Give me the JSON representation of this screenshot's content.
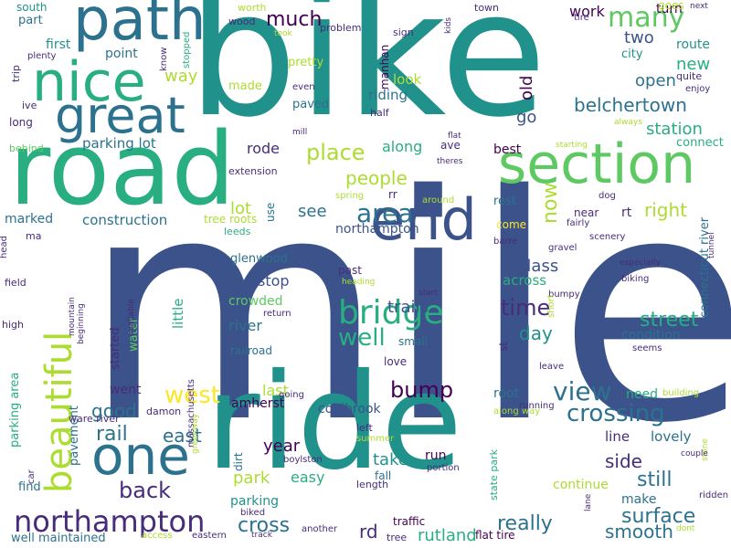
{
  "palette": {
    "dark_purple": "#440154",
    "indigo": "#472c7a",
    "blue": "#3b528b",
    "steel": "#2c728e",
    "teal": "#21918c",
    "sea": "#28ae80",
    "green": "#5ec962",
    "lime": "#addc30",
    "yellow": "#fde725"
  },
  "words": [
    {
      "text": "mile",
      "size": 340,
      "color": "blue"
    },
    {
      "text": "bike",
      "size": 190,
      "color": "teal"
    },
    {
      "text": "ride",
      "size": 145,
      "color": "teal"
    },
    {
      "text": "road",
      "size": 110,
      "color": "sea"
    },
    {
      "text": "path",
      "size": 64,
      "color": "steel"
    },
    {
      "text": "section",
      "size": 60,
      "color": "green"
    },
    {
      "text": "nice",
      "size": 60,
      "color": "sea"
    },
    {
      "text": "great",
      "size": 54,
      "color": "steel"
    },
    {
      "text": "end",
      "size": 62,
      "color": "blue"
    },
    {
      "text": "one",
      "size": 58,
      "color": "steel"
    },
    {
      "text": "beautiful",
      "size": 40,
      "color": "lime"
    },
    {
      "text": "northampton",
      "size": 32,
      "color": "indigo"
    },
    {
      "text": "bridge",
      "size": 36,
      "color": "sea"
    },
    {
      "text": "many",
      "size": 30,
      "color": "green"
    },
    {
      "text": "area",
      "size": 28,
      "color": "steel"
    },
    {
      "text": "view",
      "size": 28,
      "color": "steel"
    },
    {
      "text": "west",
      "size": 26,
      "color": "yellow"
    },
    {
      "text": "crossing",
      "size": 26,
      "color": "steel"
    },
    {
      "text": "well",
      "size": 26,
      "color": "sea"
    },
    {
      "text": "time",
      "size": 24,
      "color": "indigo"
    },
    {
      "text": "street",
      "size": 22,
      "color": "sea"
    },
    {
      "text": "back",
      "size": 24,
      "color": "indigo"
    },
    {
      "text": "surface",
      "size": 22,
      "color": "steel"
    },
    {
      "text": "place",
      "size": 24,
      "color": "lime"
    },
    {
      "text": "bump",
      "size": 24,
      "color": "dark_purple"
    },
    {
      "text": "much",
      "size": 22,
      "color": "dark_purple"
    },
    {
      "text": "now",
      "size": 22,
      "color": "lime"
    },
    {
      "text": "really",
      "size": 22,
      "color": "steel"
    },
    {
      "text": "cross",
      "size": 22,
      "color": "steel"
    },
    {
      "text": "smooth",
      "size": 20,
      "color": "steel"
    },
    {
      "text": "rail",
      "size": 22,
      "color": "steel"
    },
    {
      "text": "east",
      "size": 20,
      "color": "steel"
    },
    {
      "text": "still",
      "size": 22,
      "color": "steel"
    },
    {
      "text": "good",
      "size": 20,
      "color": "steel"
    },
    {
      "text": "people",
      "size": 20,
      "color": "lime"
    },
    {
      "text": "belchertown",
      "size": 20,
      "color": "steel"
    },
    {
      "text": "day",
      "size": 20,
      "color": "teal"
    },
    {
      "text": "side",
      "size": 20,
      "color": "indigo"
    },
    {
      "text": "right",
      "size": 20,
      "color": "lime"
    },
    {
      "text": "rd",
      "size": 20,
      "color": "indigo"
    },
    {
      "text": "park",
      "size": 18,
      "color": "lime"
    },
    {
      "text": "year",
      "size": 18,
      "color": "dark_purple"
    },
    {
      "text": "rutland",
      "size": 18,
      "color": "sea"
    },
    {
      "text": "station",
      "size": 18,
      "color": "sea"
    },
    {
      "text": "open",
      "size": 18,
      "color": "steel"
    },
    {
      "text": "glass",
      "size": 18,
      "color": "blue"
    },
    {
      "text": "see",
      "size": 18,
      "color": "steel"
    },
    {
      "text": "go",
      "size": 18,
      "color": "blue"
    },
    {
      "text": "new",
      "size": 18,
      "color": "sea"
    },
    {
      "text": "trails",
      "size": 18,
      "color": "blue"
    },
    {
      "text": "along",
      "size": 16,
      "color": "sea"
    },
    {
      "text": "two",
      "size": 18,
      "color": "blue"
    },
    {
      "text": "old",
      "size": 18,
      "color": "dark_purple"
    },
    {
      "text": "take",
      "size": 18,
      "color": "teal"
    },
    {
      "text": "work",
      "size": 16,
      "color": "dark_purple"
    },
    {
      "text": "way",
      "size": 18,
      "color": "lime"
    },
    {
      "text": "last",
      "size": 16,
      "color": "lime"
    },
    {
      "text": "lot",
      "size": 18,
      "color": "lime"
    },
    {
      "text": "stop",
      "size": 16,
      "color": "blue"
    },
    {
      "text": "parking lot",
      "size": 15,
      "color": "steel"
    },
    {
      "text": "rode",
      "size": 16,
      "color": "indigo"
    },
    {
      "text": "construction",
      "size": 15,
      "color": "steel"
    },
    {
      "text": "river",
      "size": 16,
      "color": "steel"
    },
    {
      "text": "easy",
      "size": 16,
      "color": "sea"
    },
    {
      "text": "riding",
      "size": 15,
      "color": "steel"
    },
    {
      "text": "look",
      "size": 15,
      "color": "lime"
    },
    {
      "text": "across",
      "size": 15,
      "color": "sea"
    },
    {
      "text": "amherst",
      "size": 14,
      "color": "dark_purple"
    },
    {
      "text": "coldbrook",
      "size": 14,
      "color": "blue"
    },
    {
      "text": "northampton",
      "size": 14,
      "color": "blue"
    },
    {
      "text": "condition",
      "size": 14,
      "color": "steel"
    },
    {
      "text": "line",
      "size": 15,
      "color": "indigo"
    },
    {
      "text": "lovely",
      "size": 15,
      "color": "steel"
    },
    {
      "text": "little",
      "size": 15,
      "color": "sea"
    },
    {
      "text": "crowded",
      "size": 14,
      "color": "green"
    },
    {
      "text": "route",
      "size": 14,
      "color": "teal"
    },
    {
      "text": "point",
      "size": 14,
      "color": "steel"
    },
    {
      "text": "parking",
      "size": 14,
      "color": "teal"
    },
    {
      "text": "first",
      "size": 14,
      "color": "teal"
    },
    {
      "text": "went",
      "size": 14,
      "color": "indigo"
    },
    {
      "text": "need",
      "size": 14,
      "color": "sea"
    },
    {
      "text": "best",
      "size": 14,
      "color": "dark_purple"
    },
    {
      "text": "root",
      "size": 14,
      "color": "steel"
    },
    {
      "text": "marked",
      "size": 14,
      "color": "steel"
    },
    {
      "text": "continue",
      "size": 14,
      "color": "lime"
    },
    {
      "text": "make",
      "size": 14,
      "color": "steel"
    },
    {
      "text": "run",
      "size": 14,
      "color": "dark_purple"
    },
    {
      "text": "glenwood",
      "size": 13,
      "color": "steel"
    },
    {
      "text": "connect",
      "size": 13,
      "color": "sea"
    },
    {
      "text": "rest",
      "size": 13,
      "color": "steel"
    },
    {
      "text": "pavement",
      "size": 13,
      "color": "steel"
    },
    {
      "text": "connecticut river",
      "size": 13,
      "color": "steel"
    },
    {
      "text": "turn",
      "size": 14,
      "color": "dark_purple"
    },
    {
      "text": "part",
      "size": 13,
      "color": "steel"
    },
    {
      "text": "well maintained",
      "size": 13,
      "color": "steel"
    },
    {
      "text": "find",
      "size": 13,
      "color": "steel"
    },
    {
      "text": "parking area",
      "size": 13,
      "color": "sea"
    },
    {
      "text": "state park",
      "size": 11,
      "color": "sea"
    },
    {
      "text": "started",
      "size": 13,
      "color": "indigo"
    },
    {
      "text": "water",
      "size": 13,
      "color": "green"
    },
    {
      "text": "city",
      "size": 13,
      "color": "teal"
    },
    {
      "text": "pretty",
      "size": 13,
      "color": "lime"
    },
    {
      "text": "made",
      "size": 13,
      "color": "lime"
    },
    {
      "text": "paved",
      "size": 13,
      "color": "steel"
    },
    {
      "text": "south",
      "size": 12,
      "color": "teal"
    },
    {
      "text": "long",
      "size": 12,
      "color": "indigo"
    },
    {
      "text": "use",
      "size": 12,
      "color": "steel"
    },
    {
      "text": "dirt",
      "size": 12,
      "color": "steel"
    },
    {
      "text": "fall",
      "size": 12,
      "color": "steel"
    },
    {
      "text": "past",
      "size": 12,
      "color": "indigo"
    },
    {
      "text": "love",
      "size": 12,
      "color": "indigo"
    },
    {
      "text": "small",
      "size": 12,
      "color": "steel"
    },
    {
      "text": "traffic",
      "size": 12,
      "color": "dark_purple"
    },
    {
      "text": "flat tire",
      "size": 12,
      "color": "dark_purple"
    },
    {
      "text": "rt",
      "size": 14,
      "color": "indigo"
    },
    {
      "text": "st",
      "size": 12,
      "color": "indigo"
    },
    {
      "text": "rr",
      "size": 12,
      "color": "indigo"
    },
    {
      "text": "ave",
      "size": 12,
      "color": "indigo"
    },
    {
      "text": "railroad",
      "size": 12,
      "color": "steel"
    },
    {
      "text": "tree roots",
      "size": 12,
      "color": "lime"
    },
    {
      "text": "ware river",
      "size": 11,
      "color": "indigo"
    },
    {
      "text": "damon",
      "size": 11,
      "color": "indigo"
    },
    {
      "text": "extension",
      "size": 11,
      "color": "indigo"
    },
    {
      "text": "manhan",
      "size": 12,
      "color": "dark_purple"
    },
    {
      "text": "leeds",
      "size": 11,
      "color": "sea"
    },
    {
      "text": "ma",
      "size": 11,
      "color": "indigo"
    },
    {
      "text": "high",
      "size": 11,
      "color": "indigo"
    },
    {
      "text": "field",
      "size": 11,
      "color": "indigo"
    },
    {
      "text": "ive",
      "size": 11,
      "color": "indigo"
    },
    {
      "text": "trip",
      "size": 11,
      "color": "indigo"
    },
    {
      "text": "plenty",
      "size": 10,
      "color": "indigo"
    },
    {
      "text": "behind",
      "size": 11,
      "color": "green"
    },
    {
      "text": "wood",
      "size": 11,
      "color": "indigo"
    },
    {
      "text": "worth",
      "size": 11,
      "color": "lime"
    },
    {
      "text": "know",
      "size": 10,
      "color": "indigo"
    },
    {
      "text": "stopped",
      "size": 10,
      "color": "sea"
    },
    {
      "text": "problem",
      "size": 11,
      "color": "indigo"
    },
    {
      "text": "sign",
      "size": 11,
      "color": "indigo"
    },
    {
      "text": "half",
      "size": 11,
      "color": "indigo"
    },
    {
      "text": "even",
      "size": 10,
      "color": "indigo"
    },
    {
      "text": "took",
      "size": 9,
      "color": "lime"
    },
    {
      "text": "mill",
      "size": 9,
      "color": "indigo"
    },
    {
      "text": "kids",
      "size": 9,
      "color": "indigo"
    },
    {
      "text": "town",
      "size": 11,
      "color": "indigo"
    },
    {
      "text": "tire",
      "size": 10,
      "color": "indigo"
    },
    {
      "text": "goes",
      "size": 12,
      "color": "lime"
    },
    {
      "text": "next",
      "size": 9,
      "color": "indigo"
    },
    {
      "text": "quite",
      "size": 11,
      "color": "indigo"
    },
    {
      "text": "enjoy",
      "size": 10,
      "color": "indigo"
    },
    {
      "text": "always",
      "size": 9,
      "color": "lime"
    },
    {
      "text": "flat",
      "size": 9,
      "color": "indigo"
    },
    {
      "text": "theres",
      "size": 9,
      "color": "indigo"
    },
    {
      "text": "starting",
      "size": 9,
      "color": "lime"
    },
    {
      "text": "spring",
      "size": 10,
      "color": "lime"
    },
    {
      "text": "around",
      "size": 10,
      "color": "lime"
    },
    {
      "text": "dog",
      "size": 10,
      "color": "indigo"
    },
    {
      "text": "near",
      "size": 12,
      "color": "indigo"
    },
    {
      "text": "come",
      "size": 12,
      "color": "yellow"
    },
    {
      "text": "fairly",
      "size": 10,
      "color": "indigo"
    },
    {
      "text": "scenery",
      "size": 10,
      "color": "indigo"
    },
    {
      "text": "barre",
      "size": 10,
      "color": "indigo"
    },
    {
      "text": "gravel",
      "size": 10,
      "color": "indigo"
    },
    {
      "text": "head",
      "size": 10,
      "color": "indigo"
    },
    {
      "text": "tunnel",
      "size": 9,
      "color": "indigo"
    },
    {
      "text": "especially",
      "size": 9,
      "color": "indigo"
    },
    {
      "text": "biking",
      "size": 10,
      "color": "indigo"
    },
    {
      "text": "bumpy",
      "size": 10,
      "color": "indigo"
    },
    {
      "text": "start",
      "size": 9,
      "color": "indigo"
    },
    {
      "text": "heading",
      "size": 9,
      "color": "lime"
    },
    {
      "text": "return",
      "size": 10,
      "color": "indigo"
    },
    {
      "text": "mountain",
      "size": 9,
      "color": "indigo"
    },
    {
      "text": "beginning",
      "size": 9,
      "color": "indigo"
    },
    {
      "text": "available",
      "size": 9,
      "color": "indigo"
    },
    {
      "text": "short",
      "size": 10,
      "color": "lime"
    },
    {
      "text": "seems",
      "size": 10,
      "color": "indigo"
    },
    {
      "text": "leave",
      "size": 10,
      "color": "indigo"
    },
    {
      "text": "building",
      "size": 10,
      "color": "lime"
    },
    {
      "text": "running",
      "size": 10,
      "color": "indigo"
    },
    {
      "text": "along way",
      "size": 10,
      "color": "lime"
    },
    {
      "text": "left",
      "size": 11,
      "color": "indigo"
    },
    {
      "text": "summer",
      "size": 10,
      "color": "lime"
    },
    {
      "text": "going",
      "size": 10,
      "color": "indigo"
    },
    {
      "text": "car",
      "size": 10,
      "color": "indigo"
    },
    {
      "text": "massachusetts",
      "size": 10,
      "color": "indigo"
    },
    {
      "text": "greenway",
      "size": 9,
      "color": "lime"
    },
    {
      "text": "boylston",
      "size": 10,
      "color": "indigo"
    },
    {
      "text": "biked",
      "size": 10,
      "color": "indigo"
    },
    {
      "text": "another",
      "size": 10,
      "color": "indigo"
    },
    {
      "text": "length",
      "size": 11,
      "color": "indigo"
    },
    {
      "text": "portion",
      "size": 10,
      "color": "indigo"
    },
    {
      "text": "track",
      "size": 9,
      "color": "indigo"
    },
    {
      "text": "access",
      "size": 10,
      "color": "lime"
    },
    {
      "text": "eastern",
      "size": 10,
      "color": "indigo"
    },
    {
      "text": "tree",
      "size": 11,
      "color": "indigo"
    },
    {
      "text": "lane",
      "size": 9,
      "color": "indigo"
    },
    {
      "text": "dont",
      "size": 9,
      "color": "lime"
    },
    {
      "text": "ridden",
      "size": 10,
      "color": "indigo"
    },
    {
      "text": "stone",
      "size": 9,
      "color": "lime"
    },
    {
      "text": "couple",
      "size": 9,
      "color": "indigo"
    },
    {
      "text": "bit",
      "size": 12,
      "color": "lime"
    }
  ]
}
